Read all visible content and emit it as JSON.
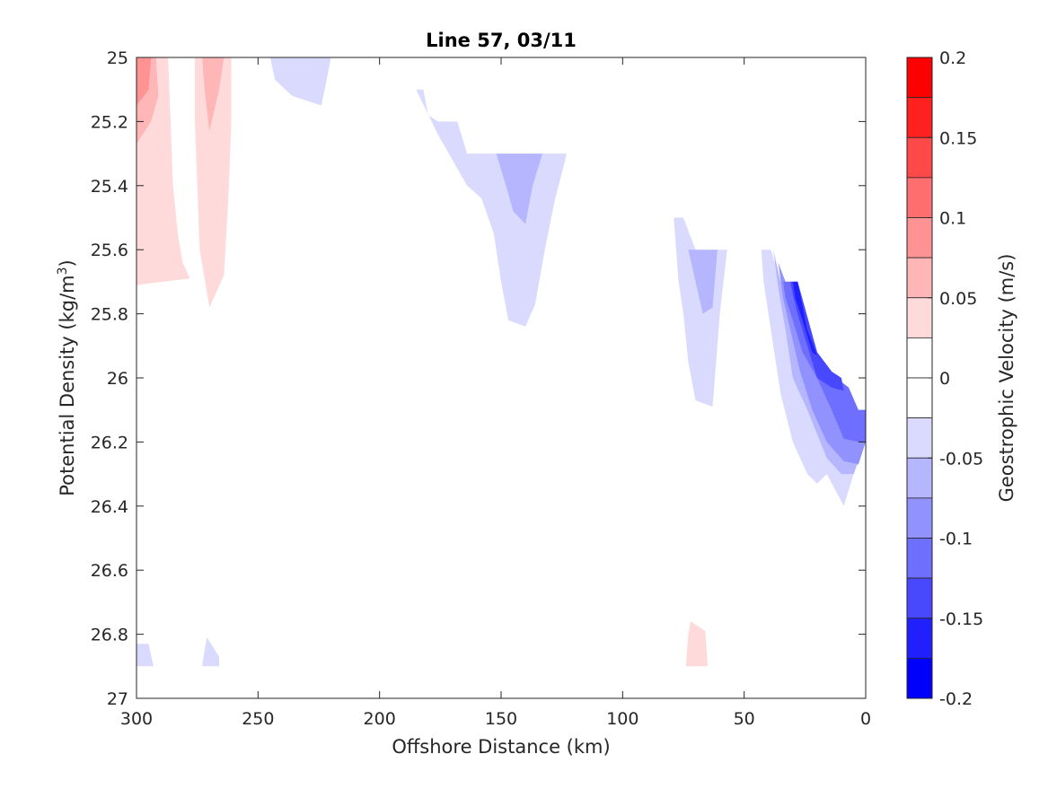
{
  "chart_data": {
    "type": "contour",
    "title": "Line 57, 03/11",
    "xlabel": "Offshore Distance (km)",
    "ylabel_main": "Potential Density (kg/m",
    "ylabel_sup": "3",
    "ylabel_end": ")",
    "colorbar_label": "Geostrophic Velocity (m/s)",
    "x_axis": {
      "range": [
        300,
        0
      ],
      "reversed": true,
      "ticks": [
        300,
        250,
        200,
        150,
        100,
        50,
        0
      ],
      "tick_labels": [
        "300",
        "250",
        "200",
        "150",
        "100",
        "50",
        "0"
      ]
    },
    "y_axis": {
      "range": [
        25,
        27
      ],
      "reversed": true,
      "ticks": [
        25,
        25.2,
        25.4,
        25.6,
        25.8,
        26,
        26.2,
        26.4,
        26.6,
        26.8,
        27
      ],
      "tick_labels": [
        "25",
        "25.2",
        "25.4",
        "25.6",
        "25.8",
        "26",
        "26.2",
        "26.4",
        "26.6",
        "26.8",
        "27"
      ]
    },
    "colorbar": {
      "range": [
        -0.2,
        0.2
      ],
      "ticks": [
        0.2,
        0.15,
        0.1,
        0.05,
        0,
        -0.05,
        -0.1,
        -0.15,
        -0.2
      ],
      "tick_labels": [
        "0.2",
        "0.15",
        "0.1",
        "0.05",
        "0",
        "-0.05",
        "-0.1",
        "-0.15",
        "-0.2"
      ],
      "levels": [
        {
          "from": 0.175,
          "to": 0.2,
          "color": "#ff0000"
        },
        {
          "from": 0.15,
          "to": 0.175,
          "color": "#ff2020"
        },
        {
          "from": 0.125,
          "to": 0.15,
          "color": "#ff4848"
        },
        {
          "from": 0.1,
          "to": 0.125,
          "color": "#ff6e6e"
        },
        {
          "from": 0.075,
          "to": 0.1,
          "color": "#ff9292"
        },
        {
          "from": 0.05,
          "to": 0.075,
          "color": "#ffb6b6"
        },
        {
          "from": 0.025,
          "to": 0.05,
          "color": "#ffdada"
        },
        {
          "from": 0,
          "to": 0.025,
          "color": "#ffffff"
        },
        {
          "from": -0.025,
          "to": 0,
          "color": "#ffffff"
        },
        {
          "from": -0.05,
          "to": -0.025,
          "color": "#dadaff"
        },
        {
          "from": -0.075,
          "to": -0.05,
          "color": "#b6b6ff"
        },
        {
          "from": -0.1,
          "to": -0.075,
          "color": "#9292ff"
        },
        {
          "from": -0.125,
          "to": -0.1,
          "color": "#6e6eff"
        },
        {
          "from": -0.15,
          "to": -0.125,
          "color": "#4848ff"
        },
        {
          "from": -0.175,
          "to": -0.15,
          "color": "#2020ff"
        },
        {
          "from": -0.2,
          "to": -0.175,
          "color": "#0000ff"
        }
      ]
    },
    "regions": [
      {
        "name": "pos-weak-300km",
        "level": 0.025,
        "color": "#ffdada",
        "points": [
          [
            300,
            25
          ],
          [
            287,
            25
          ],
          [
            286,
            25.2
          ],
          [
            285,
            25.4
          ],
          [
            283,
            25.55
          ],
          [
            281,
            25.64
          ],
          [
            278,
            25.69
          ],
          [
            300,
            25.71
          ]
        ]
      },
      {
        "name": "pos-med-300km",
        "level": 0.05,
        "color": "#ffb6b6",
        "points": [
          [
            300,
            25
          ],
          [
            292,
            25
          ],
          [
            291,
            25.12
          ],
          [
            294,
            25.2
          ],
          [
            300,
            25.27
          ]
        ]
      },
      {
        "name": "pos-strong-300km",
        "level": 0.075,
        "color": "#ff9292",
        "points": [
          [
            300,
            25
          ],
          [
            294,
            25
          ],
          [
            295,
            25.1
          ],
          [
            300,
            25.15
          ]
        ]
      },
      {
        "name": "pos-weak-270km",
        "level": 0.025,
        "color": "#ffdada",
        "points": [
          [
            276,
            25
          ],
          [
            261,
            25
          ],
          [
            261,
            25.2
          ],
          [
            262,
            25.4
          ],
          [
            263,
            25.55
          ],
          [
            264,
            25.68
          ],
          [
            270,
            25.78
          ],
          [
            274,
            25.6
          ],
          [
            275,
            25.4
          ],
          [
            276,
            25.2
          ]
        ]
      },
      {
        "name": "pos-med-270km",
        "level": 0.05,
        "color": "#ffb6b6",
        "points": [
          [
            273,
            25
          ],
          [
            264,
            25
          ],
          [
            266,
            25.1
          ],
          [
            270,
            25.23
          ],
          [
            272,
            25.1
          ]
        ]
      },
      {
        "name": "neg-weak-235km",
        "level": -0.025,
        "color": "#dadaff",
        "points": [
          [
            245,
            25
          ],
          [
            220,
            25
          ],
          [
            222,
            25.08
          ],
          [
            224,
            25.15
          ],
          [
            236,
            25.12
          ],
          [
            243,
            25.07
          ]
        ]
      },
      {
        "name": "neg-weak-150km",
        "level": -0.025,
        "color": "#dadaff",
        "points": [
          [
            185,
            25.1
          ],
          [
            182,
            25.1
          ],
          [
            180,
            25.18
          ],
          [
            176,
            25.2
          ],
          [
            168,
            25.2
          ],
          [
            164,
            25.3
          ],
          [
            123,
            25.3
          ],
          [
            128,
            25.45
          ],
          [
            132,
            25.6
          ],
          [
            136,
            25.77
          ],
          [
            140,
            25.84
          ],
          [
            147,
            25.82
          ],
          [
            150,
            25.7
          ],
          [
            153,
            25.55
          ],
          [
            158,
            25.44
          ],
          [
            164,
            25.4
          ],
          [
            170,
            25.32
          ],
          [
            176,
            25.24
          ]
        ]
      },
      {
        "name": "neg-med-150km",
        "level": -0.05,
        "color": "#b6b6ff",
        "points": [
          [
            152,
            25.3
          ],
          [
            133,
            25.3
          ],
          [
            137,
            25.4
          ],
          [
            140,
            25.52
          ],
          [
            145,
            25.48
          ],
          [
            148,
            25.4
          ]
        ]
      },
      {
        "name": "neg-weak-70km",
        "level": -0.025,
        "color": "#dadaff",
        "points": [
          [
            79,
            25.5
          ],
          [
            75,
            25.5
          ],
          [
            70,
            25.6
          ],
          [
            57,
            25.6
          ],
          [
            60,
            25.8
          ],
          [
            63,
            26.09
          ],
          [
            70,
            26.07
          ],
          [
            73,
            25.95
          ],
          [
            75,
            25.8
          ],
          [
            77,
            25.7
          ],
          [
            78,
            25.6
          ]
        ]
      },
      {
        "name": "neg-med-70km",
        "level": -0.05,
        "color": "#b6b6ff",
        "points": [
          [
            73,
            25.6
          ],
          [
            61,
            25.6
          ],
          [
            63,
            25.78
          ],
          [
            67,
            25.8
          ],
          [
            70,
            25.7
          ]
        ]
      },
      {
        "name": "pos-weak-70km-deep",
        "level": 0.025,
        "color": "#ffdada",
        "points": [
          [
            72,
            26.76
          ],
          [
            66,
            26.79
          ],
          [
            65,
            26.9
          ],
          [
            74,
            26.9
          ],
          [
            73,
            26.8
          ]
        ]
      },
      {
        "name": "neg-weak-300km-deep",
        "level": -0.025,
        "color": "#dadaff",
        "points": [
          [
            300,
            26.83
          ],
          [
            295,
            26.83
          ],
          [
            293,
            26.9
          ],
          [
            300,
            26.9
          ]
        ]
      },
      {
        "name": "neg-weak-270km-deep",
        "level": -0.025,
        "color": "#dadaff",
        "points": [
          [
            271,
            26.81
          ],
          [
            266,
            26.87
          ],
          [
            266,
            26.9
          ],
          [
            273,
            26.9
          ],
          [
            272,
            26.85
          ]
        ]
      },
      {
        "name": "neg-weak-30km",
        "level": -0.025,
        "color": "#dadaff",
        "points": [
          [
            43,
            25.6
          ],
          [
            39,
            25.6
          ],
          [
            35,
            25.7
          ],
          [
            30,
            25.8
          ],
          [
            24,
            25.96
          ],
          [
            16,
            26.03
          ],
          [
            12,
            26.1
          ],
          [
            5,
            26.1
          ],
          [
            0,
            26.1
          ],
          [
            0,
            26.2
          ],
          [
            5,
            26.3
          ],
          [
            9,
            26.4
          ],
          [
            16,
            26.3
          ],
          [
            20,
            26.33
          ],
          [
            24,
            26.3
          ],
          [
            30,
            26.2
          ],
          [
            35,
            26.05
          ],
          [
            38,
            25.9
          ],
          [
            40,
            25.8
          ],
          [
            42,
            25.7
          ]
        ]
      },
      {
        "name": "neg-med-30km",
        "level": -0.05,
        "color": "#b6b6ff",
        "points": [
          [
            38,
            25.6
          ],
          [
            35,
            25.7
          ],
          [
            30,
            25.7
          ],
          [
            24,
            25.9
          ],
          [
            16,
            26.0
          ],
          [
            10,
            26.05
          ],
          [
            3,
            26.1
          ],
          [
            0,
            26.1
          ],
          [
            0,
            26.2
          ],
          [
            5,
            26.3
          ],
          [
            10,
            26.3
          ],
          [
            16,
            26.25
          ],
          [
            24,
            26.1
          ],
          [
            30,
            26.0
          ],
          [
            33,
            25.85
          ],
          [
            36,
            25.72
          ]
        ]
      },
      {
        "name": "neg-mid-30km",
        "level": -0.075,
        "color": "#9292ff",
        "points": [
          [
            36,
            25.64
          ],
          [
            33,
            25.7
          ],
          [
            28,
            25.7
          ],
          [
            20,
            25.95
          ],
          [
            12,
            26.0
          ],
          [
            3,
            26.1
          ],
          [
            0,
            26.1
          ],
          [
            0,
            26.2
          ],
          [
            3,
            26.27
          ],
          [
            9,
            26.26
          ],
          [
            16,
            26.2
          ],
          [
            22,
            26.1
          ],
          [
            27,
            25.98
          ],
          [
            31,
            25.85
          ],
          [
            34,
            25.75
          ]
        ]
      },
      {
        "name": "neg-strong-30km",
        "level": -0.1,
        "color": "#6e6eff",
        "points": [
          [
            34,
            25.7
          ],
          [
            28,
            25.7
          ],
          [
            20,
            25.92
          ],
          [
            12,
            26.0
          ],
          [
            7,
            26.03
          ],
          [
            3,
            26.1
          ],
          [
            0,
            26.1
          ],
          [
            0,
            26.2
          ],
          [
            3,
            26.2
          ],
          [
            9,
            26.19
          ],
          [
            14,
            26.1
          ],
          [
            20,
            26.0
          ],
          [
            26,
            25.92
          ],
          [
            30,
            25.82
          ],
          [
            33,
            25.75
          ]
        ]
      },
      {
        "name": "neg-stronger-30km",
        "level": -0.125,
        "color": "#4848ff",
        "points": [
          [
            31,
            25.7
          ],
          [
            28,
            25.7
          ],
          [
            20,
            25.92
          ],
          [
            14,
            25.98
          ],
          [
            10,
            26.0
          ],
          [
            9,
            26.04
          ],
          [
            14,
            26.03
          ],
          [
            20,
            26.0
          ],
          [
            24,
            25.9
          ],
          [
            28,
            25.8
          ],
          [
            30,
            25.74
          ]
        ]
      },
      {
        "name": "neg-strongest-30km",
        "level": -0.15,
        "color": "#2020ff",
        "points": [
          [
            30,
            25.7
          ],
          [
            28,
            25.7
          ],
          [
            24,
            25.85
          ],
          [
            20,
            25.93
          ],
          [
            22,
            25.92
          ],
          [
            26,
            25.82
          ],
          [
            29,
            25.75
          ]
        ]
      }
    ]
  }
}
